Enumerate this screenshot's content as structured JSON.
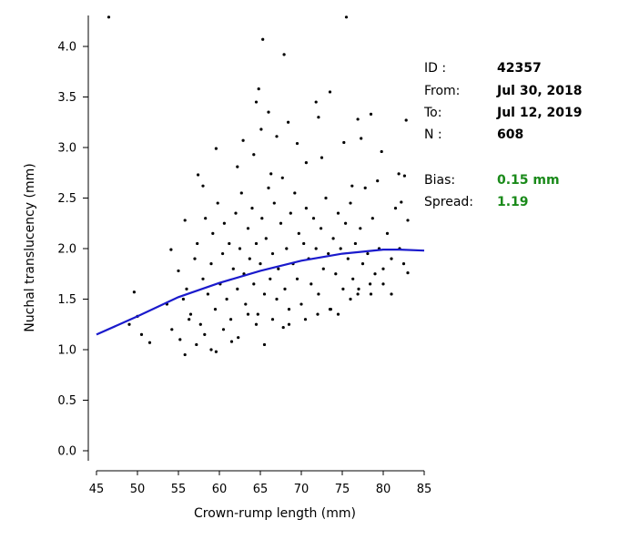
{
  "chart_data": {
    "type": "scatter",
    "title": "",
    "xlabel": "Crown-rump length (mm)",
    "ylabel": "Nuchal translucency (mm)",
    "xlim": [
      45,
      85
    ],
    "ylim": [
      0,
      4.3
    ],
    "x_ticks": [
      "45",
      "50",
      "55",
      "60",
      "65",
      "70",
      "75",
      "80",
      "85"
    ],
    "y_ticks": [
      "0.0",
      "0.5",
      "1.0",
      "1.5",
      "2.0",
      "2.5",
      "3.0",
      "3.5",
      "4.0"
    ],
    "grid": false,
    "point_color": "#000000",
    "point_count": 608,
    "series": [
      {
        "kind": "points",
        "points": [
          [
            46.5,
            4.29
          ],
          [
            75.5,
            4.29
          ],
          [
            65.3,
            4.07
          ],
          [
            67.9,
            3.92
          ],
          [
            64.8,
            3.58
          ],
          [
            64.5,
            3.45
          ],
          [
            66.0,
            3.35
          ],
          [
            71.8,
            3.45
          ],
          [
            73.5,
            3.55
          ],
          [
            68.4,
            3.25
          ],
          [
            72.1,
            3.3
          ],
          [
            76.9,
            3.28
          ],
          [
            78.5,
            3.33
          ],
          [
            82.8,
            3.27
          ],
          [
            59.6,
            2.99
          ],
          [
            62.9,
            3.07
          ],
          [
            65.1,
            3.18
          ],
          [
            67.0,
            3.11
          ],
          [
            69.5,
            3.04
          ],
          [
            75.2,
            3.05
          ],
          [
            77.3,
            3.09
          ],
          [
            79.8,
            2.96
          ],
          [
            81.9,
            2.74
          ],
          [
            82.6,
            2.72
          ],
          [
            55.8,
            2.28
          ],
          [
            57.4,
            2.73
          ],
          [
            58.0,
            2.62
          ],
          [
            62.2,
            2.81
          ],
          [
            64.2,
            2.93
          ],
          [
            66.3,
            2.74
          ],
          [
            70.6,
            2.85
          ],
          [
            72.5,
            2.9
          ],
          [
            76.2,
            2.62
          ],
          [
            79.3,
            2.67
          ],
          [
            82.2,
            2.46
          ],
          [
            83.0,
            2.28
          ],
          [
            54.1,
            1.99
          ],
          [
            55.0,
            1.78
          ],
          [
            55.6,
            1.5
          ],
          [
            56.0,
            1.6
          ],
          [
            56.5,
            1.35
          ],
          [
            57.0,
            1.9
          ],
          [
            57.3,
            2.05
          ],
          [
            57.7,
            1.25
          ],
          [
            58.0,
            1.7
          ],
          [
            58.3,
            2.3
          ],
          [
            58.6,
            1.55
          ],
          [
            59.0,
            1.85
          ],
          [
            59.2,
            2.15
          ],
          [
            59.5,
            1.4
          ],
          [
            59.8,
            2.45
          ],
          [
            60.1,
            1.65
          ],
          [
            60.4,
            1.95
          ],
          [
            60.6,
            2.25
          ],
          [
            60.9,
            1.5
          ],
          [
            61.2,
            2.05
          ],
          [
            61.4,
            1.3
          ],
          [
            61.7,
            1.8
          ],
          [
            62.0,
            2.35
          ],
          [
            62.2,
            1.6
          ],
          [
            62.5,
            2.0
          ],
          [
            62.7,
            2.55
          ],
          [
            63.0,
            1.75
          ],
          [
            63.2,
            1.45
          ],
          [
            63.5,
            2.2
          ],
          [
            63.7,
            1.9
          ],
          [
            64.0,
            2.4
          ],
          [
            64.2,
            1.65
          ],
          [
            64.5,
            2.05
          ],
          [
            64.7,
            1.35
          ],
          [
            65.0,
            1.85
          ],
          [
            65.2,
            2.3
          ],
          [
            65.5,
            1.55
          ],
          [
            65.7,
            2.1
          ],
          [
            66.0,
            2.6
          ],
          [
            66.2,
            1.7
          ],
          [
            66.5,
            1.95
          ],
          [
            66.7,
            2.45
          ],
          [
            67.0,
            1.5
          ],
          [
            67.2,
            1.8
          ],
          [
            67.5,
            2.25
          ],
          [
            67.7,
            2.7
          ],
          [
            68.0,
            1.6
          ],
          [
            68.2,
            2.0
          ],
          [
            68.5,
            1.25
          ],
          [
            68.7,
            2.35
          ],
          [
            69.0,
            1.85
          ],
          [
            69.2,
            2.55
          ],
          [
            69.5,
            1.7
          ],
          [
            69.7,
            2.15
          ],
          [
            70.0,
            1.45
          ],
          [
            70.3,
            2.05
          ],
          [
            70.6,
            2.4
          ],
          [
            70.9,
            1.9
          ],
          [
            71.2,
            1.65
          ],
          [
            71.5,
            2.3
          ],
          [
            71.8,
            2.0
          ],
          [
            72.1,
            1.55
          ],
          [
            72.4,
            2.2
          ],
          [
            72.7,
            1.8
          ],
          [
            73.0,
            2.5
          ],
          [
            73.3,
            1.95
          ],
          [
            73.6,
            1.4
          ],
          [
            73.9,
            2.1
          ],
          [
            74.2,
            1.75
          ],
          [
            74.5,
            2.35
          ],
          [
            74.8,
            2.0
          ],
          [
            75.1,
            1.6
          ],
          [
            75.4,
            2.25
          ],
          [
            75.7,
            1.9
          ],
          [
            76.0,
            2.45
          ],
          [
            76.3,
            1.7
          ],
          [
            76.6,
            2.05
          ],
          [
            76.9,
            1.55
          ],
          [
            77.2,
            2.2
          ],
          [
            77.5,
            1.85
          ],
          [
            77.8,
            2.6
          ],
          [
            78.1,
            1.95
          ],
          [
            78.4,
            1.65
          ],
          [
            78.7,
            2.3
          ],
          [
            79.0,
            1.75
          ],
          [
            79.5,
            2.0
          ],
          [
            80.0,
            1.8
          ],
          [
            80.5,
            2.15
          ],
          [
            81.0,
            1.9
          ],
          [
            81.5,
            2.4
          ],
          [
            82.0,
            2.0
          ],
          [
            82.5,
            1.85
          ],
          [
            83.0,
            1.76
          ],
          [
            49.0,
            1.25
          ],
          [
            49.6,
            1.57
          ],
          [
            50.0,
            1.33
          ],
          [
            50.5,
            1.15
          ],
          [
            51.5,
            1.07
          ],
          [
            53.6,
            1.45
          ],
          [
            54.2,
            1.2
          ],
          [
            55.2,
            1.1
          ],
          [
            55.8,
            0.95
          ],
          [
            56.3,
            1.3
          ],
          [
            57.2,
            1.05
          ],
          [
            58.2,
            1.15
          ],
          [
            59.0,
            1.0
          ],
          [
            59.6,
            0.98
          ],
          [
            60.5,
            1.2
          ],
          [
            61.5,
            1.08
          ],
          [
            62.3,
            1.12
          ],
          [
            63.5,
            1.35
          ],
          [
            64.5,
            1.25
          ],
          [
            65.5,
            1.05
          ],
          [
            66.5,
            1.3
          ],
          [
            67.8,
            1.22
          ],
          [
            68.5,
            1.4
          ],
          [
            70.5,
            1.3
          ],
          [
            72.0,
            1.35
          ],
          [
            73.5,
            1.4
          ],
          [
            74.5,
            1.35
          ],
          [
            76.0,
            1.5
          ],
          [
            77.0,
            1.6
          ],
          [
            78.5,
            1.55
          ],
          [
            80.0,
            1.65
          ],
          [
            81.0,
            1.55
          ]
        ]
      },
      {
        "kind": "line",
        "color": "#1a1acc",
        "points": [
          [
            45.0,
            1.15
          ],
          [
            50.0,
            1.33
          ],
          [
            55.0,
            1.52
          ],
          [
            60.0,
            1.66
          ],
          [
            65.0,
            1.78
          ],
          [
            70.0,
            1.88
          ],
          [
            75.0,
            1.95
          ],
          [
            80.0,
            1.99
          ],
          [
            82.0,
            1.99
          ],
          [
            85.0,
            1.98
          ]
        ]
      }
    ]
  },
  "info": {
    "rows": [
      {
        "key": "ID :",
        "value": "42357",
        "style": "normal"
      },
      {
        "key": "From:",
        "value": "Jul 30, 2018",
        "style": "normal"
      },
      {
        "key": "To:",
        "value": "Jul 12, 2019",
        "style": "normal"
      },
      {
        "key": "N :",
        "value": "608",
        "style": "normal"
      },
      {
        "key": "Bias:",
        "value": "0.15 mm",
        "style": "good"
      },
      {
        "key": "Spread:",
        "value": "1.19",
        "style": "good"
      }
    ],
    "good_color": "#1a8a1a"
  }
}
